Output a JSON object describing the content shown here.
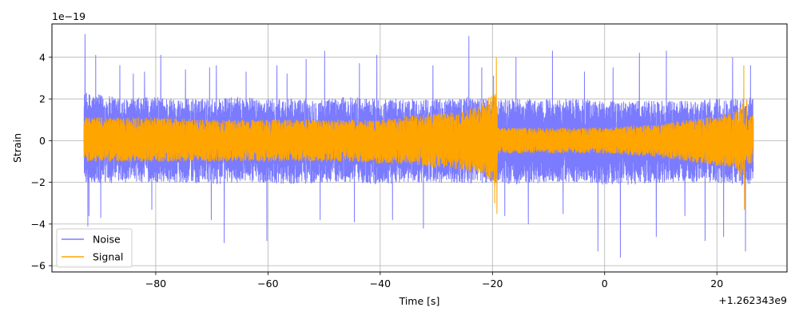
{
  "chart_data": {
    "type": "line",
    "title": "",
    "xlabel": "Time [s]",
    "ylabel": "Strain",
    "x_offset_label": "+1.262343e9",
    "y_scale_label": "1e−19",
    "xlim": [
      -98.5,
      32.5
    ],
    "ylim": [
      -6.3,
      5.6
    ],
    "x_ticks": [
      -80,
      -60,
      -40,
      -20,
      0,
      20
    ],
    "x_tick_labels": [
      "−80",
      "−60",
      "−40",
      "−20",
      "0",
      "20"
    ],
    "y_ticks": [
      -6,
      -4,
      -2,
      0,
      2,
      4
    ],
    "y_tick_labels": [
      "−6",
      "−4",
      "−2",
      "0",
      "2",
      "4"
    ],
    "grid": true,
    "legend_position": "lower-left",
    "series": [
      {
        "name": "Noise",
        "color": "#7b7bff",
        "x_range": [
          -92.8,
          26.5
        ],
        "envelope": {
          "x": [
            -92.8,
            -90,
            -85,
            -80,
            -75,
            -70,
            -65,
            -60,
            -55,
            -50,
            -45,
            -40,
            -35,
            -30,
            -25,
            -20,
            -19.2,
            -15,
            -10,
            -5,
            0,
            5,
            10,
            15,
            20,
            24.6,
            26.5
          ],
          "upper": [
            2.3,
            2.2,
            2.0,
            2.1,
            2.0,
            2.0,
            2.1,
            2.0,
            2.0,
            2.0,
            2.1,
            2.0,
            2.0,
            2.0,
            2.1,
            2.0,
            2.0,
            2.0,
            2.0,
            2.0,
            1.9,
            1.9,
            1.9,
            1.9,
            2.0,
            2.0,
            2.1
          ],
          "lower": [
            -2.0,
            -2.1,
            -2.0,
            -2.0,
            -2.0,
            -2.1,
            -2.0,
            -2.0,
            -2.1,
            -2.0,
            -2.0,
            -2.1,
            -2.0,
            -2.0,
            -2.1,
            -2.0,
            -2.1,
            -2.1,
            -2.0,
            -2.0,
            -2.1,
            -2.1,
            -2.0,
            -2.0,
            -2.0,
            -2.2,
            -2.0
          ]
        },
        "peaks": [
          [
            -92.6,
            5.1
          ],
          [
            -91.9,
            -3.6
          ],
          [
            -92.1,
            -4.1
          ],
          [
            -90.7,
            4.1
          ],
          [
            -89.8,
            -3.7
          ],
          [
            -86.4,
            3.6
          ],
          [
            -84.0,
            3.2
          ],
          [
            -82.0,
            3.3
          ],
          [
            -80.7,
            -3.3
          ],
          [
            -79.1,
            4.1
          ],
          [
            -74.7,
            3.4
          ],
          [
            -70.4,
            3.5
          ],
          [
            -70.1,
            -3.8
          ],
          [
            -69.2,
            3.6
          ],
          [
            -67.8,
            -4.9
          ],
          [
            -63.9,
            3.3
          ],
          [
            -60.2,
            -4.8
          ],
          [
            -58.4,
            3.6
          ],
          [
            -56.6,
            3.2
          ],
          [
            -53.2,
            3.9
          ],
          [
            -50.7,
            -3.8
          ],
          [
            -49.9,
            4.3
          ],
          [
            -44.6,
            -3.9
          ],
          [
            -43.7,
            3.7
          ],
          [
            -40.6,
            4.1
          ],
          [
            -37.8,
            -3.8
          ],
          [
            -32.3,
            -4.2
          ],
          [
            -30.6,
            3.6
          ],
          [
            -24.2,
            5.0
          ],
          [
            -21.9,
            3.5
          ],
          [
            -19.8,
            3.1
          ],
          [
            -17.8,
            -3.6
          ],
          [
            -15.8,
            4.0
          ],
          [
            -13.6,
            -4.0
          ],
          [
            -9.3,
            4.3
          ],
          [
            -7.4,
            -3.5
          ],
          [
            -3.6,
            3.3
          ],
          [
            -1.2,
            -5.3
          ],
          [
            1.5,
            3.5
          ],
          [
            2.8,
            -5.6
          ],
          [
            6.2,
            4.2
          ],
          [
            9.2,
            -4.6
          ],
          [
            11.0,
            4.3
          ],
          [
            14.3,
            -3.6
          ],
          [
            17.9,
            -4.8
          ],
          [
            21.2,
            -4.6
          ],
          [
            22.8,
            4.0
          ],
          [
            25.1,
            -5.3
          ],
          [
            26.0,
            3.6
          ]
        ]
      },
      {
        "name": "Signal",
        "color": "#ffa500",
        "x_range": [
          -92.8,
          26.5
        ],
        "envelope": {
          "x": [
            -92.8,
            -85,
            -80,
            -70,
            -60,
            -50,
            -45,
            -40,
            -35,
            -30,
            -25,
            -22,
            -20,
            -19.2,
            -19.1,
            -15,
            -10,
            -5,
            0,
            5,
            10,
            15,
            20,
            23,
            24.6,
            24.7,
            26.5
          ],
          "upper": [
            1.1,
            1.1,
            1.1,
            1.0,
            1.0,
            1.0,
            1.0,
            1.0,
            1.2,
            1.3,
            1.4,
            1.8,
            2.2,
            2.7,
            0.6,
            0.6,
            0.6,
            0.6,
            0.6,
            0.7,
            0.8,
            1.0,
            1.2,
            1.4,
            1.8,
            1.0,
            1.2
          ],
          "lower": [
            -1.0,
            -1.0,
            -1.0,
            -1.0,
            -1.0,
            -1.0,
            -1.0,
            -1.1,
            -1.1,
            -1.3,
            -1.4,
            -1.6,
            -2.0,
            -2.6,
            -0.6,
            -0.6,
            -0.6,
            -0.6,
            -0.6,
            -0.7,
            -0.8,
            -1.0,
            -1.2,
            -1.3,
            -1.6,
            -1.0,
            -1.2
          ]
        },
        "peaks": [
          [
            -92.7,
            0.6
          ],
          [
            -92.6,
            -0.5
          ],
          [
            -19.3,
            4.0
          ],
          [
            -19.2,
            -3.5
          ],
          [
            -19.6,
            -3.0
          ],
          [
            24.8,
            3.6
          ],
          [
            24.9,
            -3.3
          ],
          [
            24.2,
            -1.7
          ],
          [
            25.3,
            1.9
          ]
        ]
      }
    ]
  }
}
